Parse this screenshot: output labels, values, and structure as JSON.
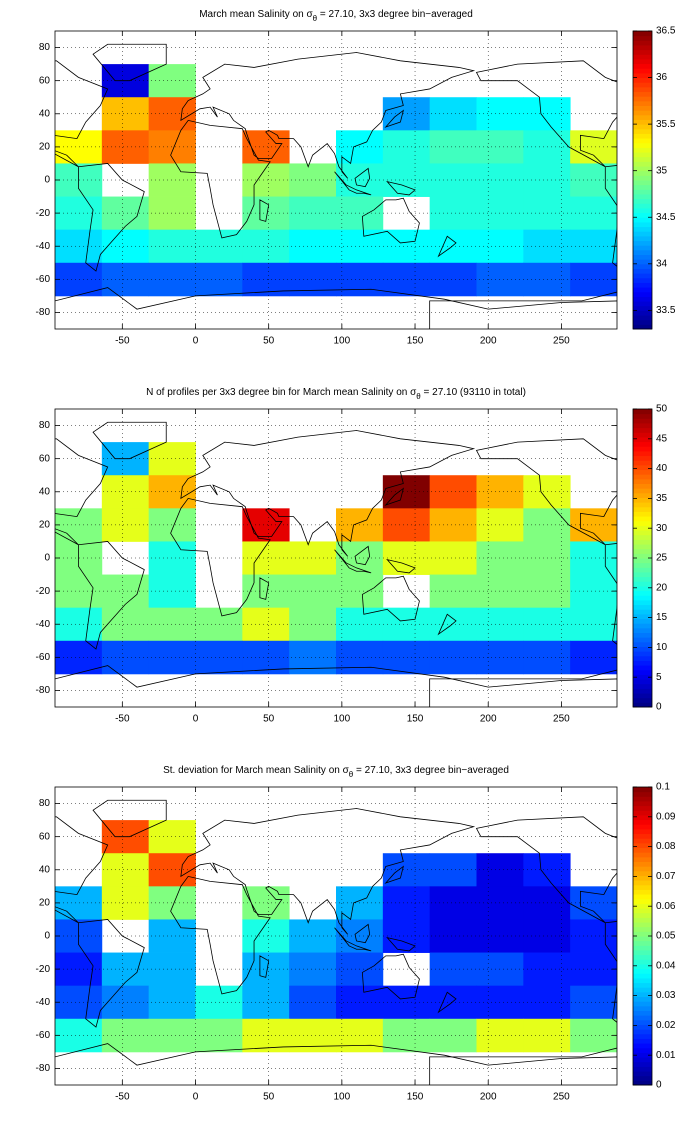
{
  "chart_data": [
    {
      "type": "heatmap",
      "title": [
        "March mean Salinity on σ",
        "θ",
        " = 27.10, 3x3 degree bin−averaged"
      ],
      "x": [
        -80,
        -48,
        -16,
        16,
        48,
        80,
        112,
        144,
        176,
        208,
        240,
        272
      ],
      "y": [
        80,
        60,
        40,
        20,
        0,
        -20,
        -40,
        -60,
        -80
      ],
      "values": [
        [
          null,
          null,
          null,
          null,
          null,
          null,
          null,
          null,
          null,
          null,
          null,
          null
        ],
        [
          null,
          33.6,
          34.9,
          null,
          null,
          null,
          null,
          null,
          null,
          null,
          null,
          null
        ],
        [
          null,
          35.5,
          35.8,
          null,
          null,
          null,
          null,
          34.2,
          34.4,
          34.5,
          34.5,
          null
        ],
        [
          35.3,
          35.8,
          35.7,
          null,
          35.8,
          null,
          34.5,
          34.6,
          34.7,
          34.7,
          34.6,
          35.2
        ],
        [
          34.7,
          null,
          35.0,
          null,
          35.0,
          34.9,
          34.6,
          34.6,
          34.6,
          34.6,
          34.6,
          34.7
        ],
        [
          34.6,
          34.8,
          35.0,
          null,
          34.8,
          34.7,
          34.7,
          null,
          34.6,
          34.6,
          34.6,
          34.6
        ],
        [
          34.4,
          34.5,
          34.6,
          34.6,
          34.6,
          34.5,
          34.5,
          34.5,
          34.5,
          34.5,
          34.4,
          34.4
        ],
        [
          33.9,
          34.0,
          34.0,
          34.0,
          33.9,
          33.9,
          33.9,
          33.9,
          33.9,
          34.0,
          34.0,
          33.9
        ],
        [
          null,
          null,
          null,
          null,
          null,
          null,
          null,
          null,
          null,
          null,
          null,
          null
        ]
      ],
      "xlim": [
        -96,
        288
      ],
      "ylim": [
        -90,
        90
      ],
      "xticks": [
        -50,
        0,
        50,
        100,
        150,
        200,
        250
      ],
      "yticks": [
        -80,
        -60,
        -40,
        -20,
        0,
        20,
        40,
        60,
        80
      ],
      "clim": [
        33.3,
        36.5
      ],
      "cticks": [
        33.5,
        34,
        34.5,
        35,
        35.5,
        36,
        36.5
      ],
      "colormap": "jet",
      "grid": true
    },
    {
      "type": "heatmap",
      "title": [
        "N of profiles per 3x3 degree bin for March mean Salinity on σ",
        "θ",
        " = 27.10 (93110 in total)"
      ],
      "x": [
        -80,
        -48,
        -16,
        16,
        48,
        80,
        112,
        144,
        176,
        208,
        240,
        272
      ],
      "y": [
        80,
        60,
        40,
        20,
        0,
        -20,
        -40,
        -60,
        -80
      ],
      "values": [
        [
          null,
          null,
          null,
          null,
          null,
          null,
          null,
          null,
          null,
          null,
          null,
          null
        ],
        [
          null,
          15,
          30,
          null,
          null,
          null,
          null,
          null,
          null,
          null,
          null,
          null
        ],
        [
          null,
          30,
          35,
          null,
          null,
          null,
          null,
          50,
          40,
          35,
          30,
          null
        ],
        [
          25,
          30,
          25,
          null,
          45,
          null,
          35,
          40,
          35,
          30,
          25,
          35
        ],
        [
          25,
          null,
          20,
          null,
          30,
          30,
          25,
          30,
          30,
          25,
          25,
          20
        ],
        [
          25,
          25,
          20,
          null,
          25,
          25,
          25,
          null,
          25,
          25,
          25,
          20
        ],
        [
          20,
          25,
          25,
          25,
          30,
          25,
          20,
          20,
          20,
          20,
          20,
          20
        ],
        [
          8,
          10,
          10,
          10,
          10,
          12,
          10,
          10,
          10,
          10,
          10,
          8
        ],
        [
          null,
          null,
          null,
          null,
          null,
          null,
          null,
          null,
          null,
          null,
          null,
          null
        ]
      ],
      "xlim": [
        -96,
        288
      ],
      "ylim": [
        -90,
        90
      ],
      "xticks": [
        -50,
        0,
        50,
        100,
        150,
        200,
        250
      ],
      "yticks": [
        -80,
        -60,
        -40,
        -20,
        0,
        20,
        40,
        60,
        80
      ],
      "clim": [
        0,
        50
      ],
      "cticks": [
        0,
        5,
        10,
        15,
        20,
        25,
        30,
        35,
        40,
        45,
        50
      ],
      "colormap": "jet",
      "grid": true
    },
    {
      "type": "heatmap",
      "title": [
        "St. deviation for March mean Salinity on σ",
        "θ",
        " = 27.10, 3x3 degree bin−averaged"
      ],
      "x": [
        -80,
        -48,
        -16,
        16,
        48,
        80,
        112,
        144,
        176,
        208,
        240,
        272
      ],
      "y": [
        80,
        60,
        40,
        20,
        0,
        -20,
        -40,
        -60,
        -80
      ],
      "values": [
        [
          null,
          null,
          null,
          null,
          null,
          null,
          null,
          null,
          null,
          null,
          null,
          null
        ],
        [
          null,
          0.08,
          0.06,
          null,
          null,
          null,
          null,
          null,
          null,
          null,
          null,
          null
        ],
        [
          null,
          0.06,
          0.08,
          null,
          null,
          null,
          null,
          0.02,
          0.02,
          0.01,
          0.015,
          null
        ],
        [
          0.03,
          0.06,
          0.05,
          null,
          0.05,
          null,
          0.03,
          0.015,
          0.01,
          0.01,
          0.01,
          0.02
        ],
        [
          0.02,
          null,
          0.03,
          null,
          0.04,
          0.03,
          0.025,
          0.015,
          0.01,
          0.01,
          0.01,
          0.015
        ],
        [
          0.015,
          0.03,
          0.03,
          null,
          0.03,
          0.025,
          0.02,
          null,
          0.02,
          0.02,
          0.015,
          0.015
        ],
        [
          0.02,
          0.025,
          0.03,
          0.04,
          0.03,
          0.02,
          0.015,
          0.015,
          0.015,
          0.015,
          0.015,
          0.02
        ],
        [
          0.04,
          0.05,
          0.05,
          0.05,
          0.06,
          0.06,
          0.06,
          0.05,
          0.05,
          0.06,
          0.06,
          0.05
        ],
        [
          null,
          null,
          null,
          null,
          null,
          null,
          null,
          null,
          null,
          null,
          null,
          null
        ]
      ],
      "xlim": [
        -96,
        288
      ],
      "ylim": [
        -90,
        90
      ],
      "xticks": [
        -50,
        0,
        50,
        100,
        150,
        200,
        250
      ],
      "yticks": [
        -80,
        -60,
        -40,
        -20,
        0,
        20,
        40,
        60,
        80
      ],
      "clim": [
        0,
        0.1
      ],
      "cticks": [
        0,
        0.01,
        0.02,
        0.03,
        0.04,
        0.05,
        0.06,
        0.07,
        0.08,
        0.09,
        0.1
      ],
      "colormap": "jet",
      "grid": true
    }
  ]
}
